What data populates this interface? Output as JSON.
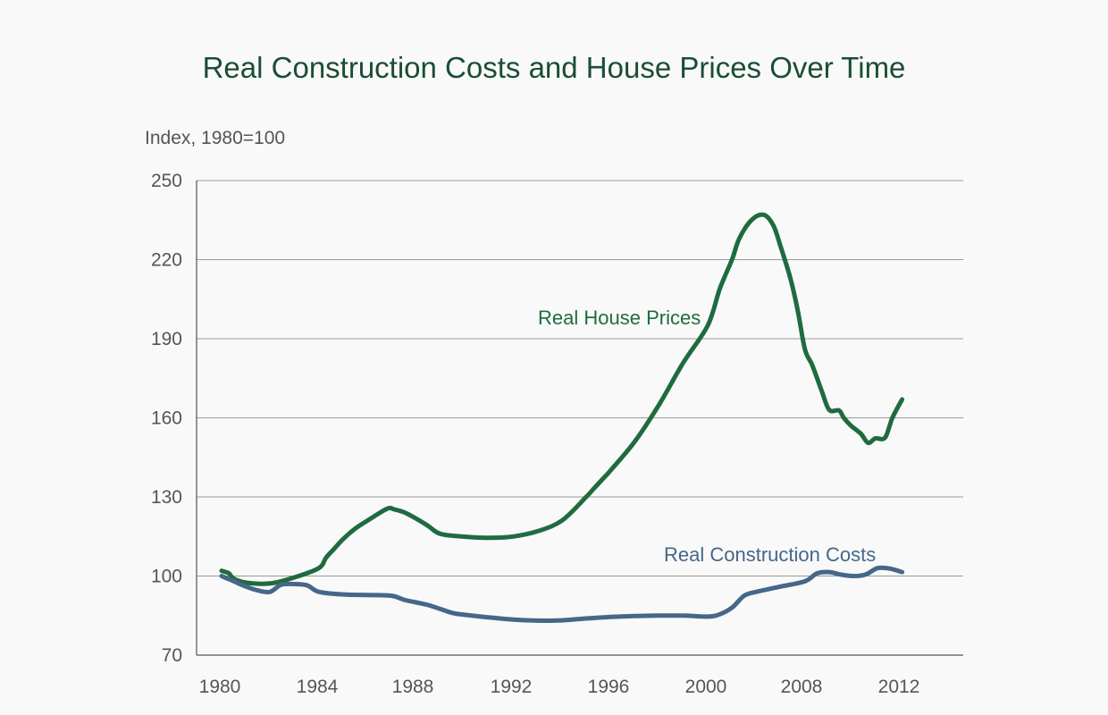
{
  "chart_data": {
    "type": "line",
    "title": "Real Construction Costs and House Prices Over Time",
    "ylabel": "Index, 1980=100",
    "xlabel": "",
    "ylim": [
      70,
      250
    ],
    "yticks": [
      70,
      100,
      130,
      160,
      190,
      220,
      250
    ],
    "xtick_labels": [
      "1980",
      "1984",
      "1988",
      "1992",
      "1996",
      "2000",
      "2008",
      "2012"
    ],
    "grid": true,
    "series": [
      {
        "name": "Real House Prices",
        "label": "Real House Prices",
        "color": "#1f6b3f",
        "x": [
          0,
          0.3,
          0.5,
          1,
          2,
          3,
          4,
          4.3,
          4.6,
          5,
          5.5,
          6,
          6.8,
          7.1,
          7.5,
          8,
          8.5,
          9,
          10,
          11,
          12,
          13,
          14,
          15,
          15.3,
          15.7,
          16,
          17,
          18,
          19,
          20,
          20.5,
          21,
          21.3,
          21.8,
          22.3,
          22.7,
          23,
          23.4,
          23.7,
          24,
          24.3,
          24.7,
          25,
          25.4,
          25.6,
          25.9,
          26.3,
          26.6,
          26.9,
          27.3,
          27.6,
          28
        ],
        "values": [
          102,
          101,
          99,
          97.5,
          97.2,
          99.5,
          103,
          107,
          110,
          114,
          118,
          121,
          125.5,
          125.3,
          124.2,
          121.8,
          119,
          116,
          114.9,
          114.5,
          115,
          117,
          121,
          130,
          133,
          137,
          140,
          151,
          165,
          181,
          195,
          209,
          220,
          228,
          235,
          237,
          233,
          225,
          213,
          201,
          186,
          180,
          170,
          163,
          162.8,
          160,
          157,
          154,
          150.5,
          152.2,
          152.5,
          160,
          167
        ]
      },
      {
        "name": "Real Construction Costs",
        "label": "Real Construction Costs",
        "color": "#456789",
        "x": [
          0,
          0.5,
          1,
          1.5,
          2,
          2.4,
          2.8,
          3.5,
          4,
          5,
          6,
          7,
          7.5,
          8,
          8.5,
          9,
          9.5,
          10,
          11,
          12,
          13,
          14,
          15,
          16,
          17,
          18,
          19,
          20,
          20.5,
          21,
          21.5,
          22,
          23,
          24,
          24.5,
          25,
          25.5,
          26,
          26.5,
          27,
          27.5,
          28
        ],
        "values": [
          100,
          98,
          96,
          94.5,
          94,
          96.5,
          97,
          96.5,
          94,
          93,
          92.8,
          92.5,
          91,
          90,
          89,
          87.5,
          86,
          85.3,
          84.3,
          83.5,
          83.1,
          83.2,
          83.9,
          84.5,
          84.8,
          85,
          85,
          84.6,
          85.5,
          88,
          92.5,
          94,
          96,
          98,
          101,
          101.5,
          100.5,
          100,
          100.6,
          103,
          102.8,
          101.5
        ]
      }
    ]
  }
}
